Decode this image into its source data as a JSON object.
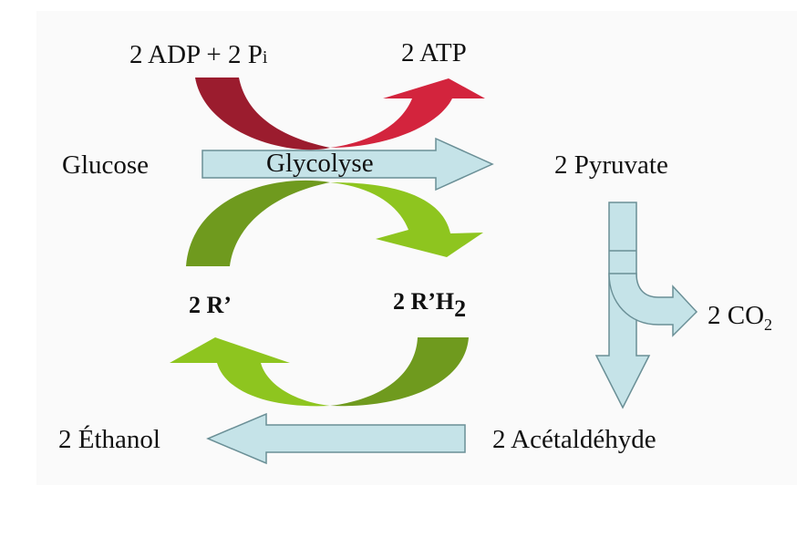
{
  "labels": {
    "adp": {
      "main": "2 ADP + 2 P",
      "sub": "i"
    },
    "atp": "2 ATP",
    "glucose": "Glucose",
    "glycolyse": "Glycolyse",
    "pyruvate": "2 Pyruvate",
    "r_prime": "2 R’",
    "rh2": {
      "main": "2 R’H",
      "sub": "2"
    },
    "co2": {
      "main": "2 CO",
      "sub": "2"
    },
    "ethanol": "2 Éthanol",
    "acetaldehyde": "2 Acétaldéhyde"
  },
  "colors": {
    "adp_arrow": "#9b1c2e",
    "atp_arrow": "#d3243d",
    "main_arrow_fill": "#c5e3e8",
    "main_arrow_stroke": "#6a8f96",
    "green_dark": "#6f9a1e",
    "green_light": "#8ec51f"
  }
}
